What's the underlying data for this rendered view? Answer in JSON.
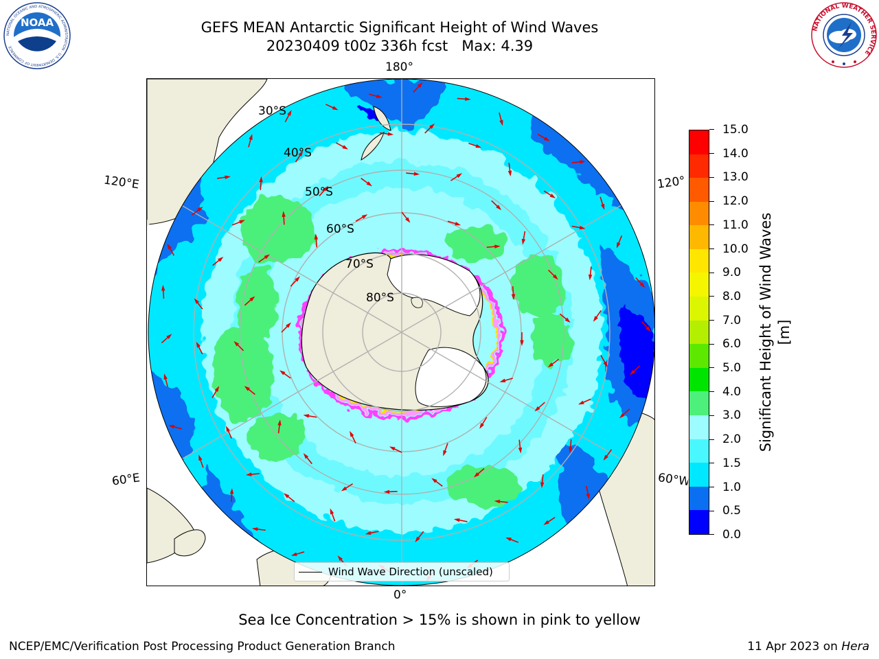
{
  "title": {
    "line1": "GEFS MEAN Antarctic Significant Height of Wind Waves",
    "line2": "20230409 t00z 336h fcst   Max: 4.39"
  },
  "map": {
    "projection": "south-polar-stereographic",
    "longitude_labels": [
      "180°",
      "120°E",
      "120°",
      "60°E",
      "60°W",
      "0°"
    ],
    "latitude_labels": [
      "30°S",
      "40°S",
      "50°S",
      "60°S",
      "70°S",
      "80°S"
    ],
    "land_color": "#efeddb",
    "land_ice_color": "#ffffff",
    "sea_ice_edge_colors": [
      "#ff40ff",
      "#ff99ff",
      "#ffdd00"
    ],
    "arrow_color": "#e00000",
    "legend_label": "Wind Wave Direction (unscaled)"
  },
  "colorbar": {
    "title": "Significant Height of Wind Waves [m]",
    "tick_labels": [
      "0.0",
      "0.5",
      "1.0",
      "1.5",
      "2.0",
      "3.0",
      "4.0",
      "5.0",
      "6.0",
      "7.0",
      "8.0",
      "9.0",
      "10.0",
      "11.0",
      "12.0",
      "13.0",
      "14.0",
      "15.0"
    ],
    "colors": [
      "#0000ff",
      "#0a6ff0",
      "#00e8ff",
      "#49f7ff",
      "#9cfcff",
      "#4cf07a",
      "#00e500",
      "#5de800",
      "#b4ee00",
      "#dcf500",
      "#f5f500",
      "#ffe600",
      "#ffb800",
      "#ff8c00",
      "#ff5a00",
      "#ff2a00",
      "#ff0000"
    ]
  },
  "caption": "Sea Ice Concentration > 15% is shown in pink to yellow",
  "footer": {
    "left": "NCEP/EMC/Verification Post Processing Product Generation Branch",
    "right_prefix": "11 Apr 2023 on ",
    "right_host": "Hera"
  },
  "logos": {
    "noaa": {
      "text": "NOAA",
      "ring_text": "NATIONAL OCEANIC AND ATMOSPHERIC ADMINISTRATION · U.S. DEPARTMENT OF COMMERCE"
    },
    "nws": {
      "ring_text": "NATIONAL WEATHER SERVICE"
    }
  }
}
